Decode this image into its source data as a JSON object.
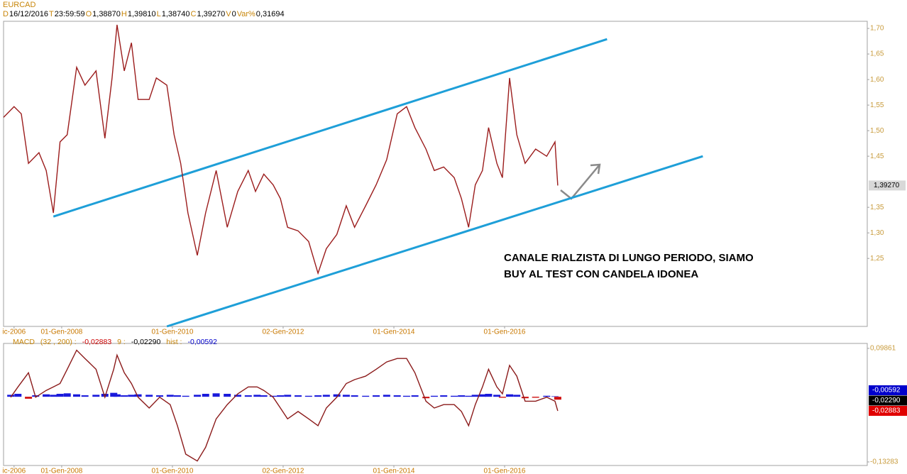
{
  "chart_data": [
    {
      "type": "line",
      "title": "EURCAD",
      "info": [
        {
          "key": "D",
          "value": "16/12/2016"
        },
        {
          "key": "T",
          "value": "23:59:59"
        },
        {
          "key": "O",
          "value": "1,38870"
        },
        {
          "key": "H",
          "value": "1,39810"
        },
        {
          "key": "L",
          "value": "1,38740"
        },
        {
          "key": "C",
          "value": "1,39270"
        },
        {
          "key": "V",
          "value": "0"
        },
        {
          "key": "Var%",
          "value": "0,31694"
        }
      ],
      "x": [
        2006.95,
        2007.14,
        2007.27,
        2007.4,
        2007.59,
        2007.72,
        2007.85,
        2007.97,
        2008.1,
        2008.27,
        2008.42,
        2008.62,
        2008.78,
        2008.91,
        2009.0,
        2009.13,
        2009.26,
        2009.38,
        2009.58,
        2009.71,
        2009.9,
        2010.03,
        2010.15,
        2010.28,
        2010.45,
        2010.6,
        2010.79,
        2010.99,
        2011.18,
        2011.37,
        2011.5,
        2011.65,
        2011.82,
        2011.95,
        2012.08,
        2012.27,
        2012.46,
        2012.63,
        2012.78,
        2012.97,
        2013.14,
        2013.29,
        2013.49,
        2013.68,
        2013.87,
        2014.06,
        2014.23,
        2014.38,
        2014.58,
        2014.73,
        2014.9,
        2015.09,
        2015.22,
        2015.35,
        2015.47,
        2015.6,
        2015.71,
        2015.86,
        2015.96,
        2016.09,
        2016.22,
        2016.37,
        2016.56,
        2016.76,
        2016.91,
        2016.96
      ],
      "series": [
        {
          "color": "#9b1c1c",
          "values": [
            1.526,
            1.547,
            1.533,
            1.436,
            1.457,
            1.422,
            1.339,
            1.478,
            1.492,
            1.624,
            1.589,
            1.617,
            1.485,
            1.603,
            1.707,
            1.617,
            1.672,
            1.561,
            1.561,
            1.603,
            1.589,
            1.492,
            1.436,
            1.339,
            1.256,
            1.339,
            1.422,
            1.311,
            1.381,
            1.422,
            1.381,
            1.415,
            1.394,
            1.367,
            1.311,
            1.304,
            1.283,
            1.221,
            1.269,
            1.297,
            1.353,
            1.311,
            1.353,
            1.394,
            1.443,
            1.533,
            1.547,
            1.506,
            1.464,
            1.422,
            1.429,
            1.408,
            1.367,
            1.311,
            1.394,
            1.422,
            1.506,
            1.436,
            1.408,
            1.603,
            1.492,
            1.436,
            1.464,
            1.45,
            1.478,
            1.3927
          ]
        }
      ],
      "xlim": [
        2006.95,
        2022.55
      ],
      "ylim": [
        1.117,
        1.714
      ],
      "yticks": [
        {
          "value": 1.25,
          "label": "1,25"
        },
        {
          "value": 1.3,
          "label": "1,30"
        },
        {
          "value": 1.35,
          "label": "1,35"
        },
        {
          "value": 1.45,
          "label": "1,45"
        },
        {
          "value": 1.5,
          "label": "1,50"
        },
        {
          "value": 1.55,
          "label": "1,55"
        },
        {
          "value": 1.6,
          "label": "1,60"
        },
        {
          "value": 1.65,
          "label": "1,65"
        },
        {
          "value": 1.7,
          "label": "1,70"
        }
      ],
      "xticks": [
        {
          "value": 2007.14,
          "label": "ic-2006"
        },
        {
          "value": 2008,
          "label": "01-Gen-2008"
        },
        {
          "value": 2010,
          "label": "01-Gen-2010"
        },
        {
          "value": 2012,
          "label": "02-Gen-2012"
        },
        {
          "value": 2014,
          "label": "01-Gen-2014"
        },
        {
          "value": 2016,
          "label": "01-Gen-2016"
        }
      ],
      "last_price": {
        "value": 1.3927,
        "label": "1,39270"
      },
      "trendlines": [
        {
          "x": [
            2007.85,
            2017.85
          ],
          "y": [
            1.332,
            1.679
          ],
          "color": "#1e9fd8"
        },
        {
          "x": [
            2009.9,
            2019.58
          ],
          "y": [
            1.117,
            1.45
          ],
          "color": "#1e9fd8"
        }
      ],
      "annotation": [
        "CANALE RIALZISTA DI LUNGO PERIODO, SIAMO",
        "BUY AL TEST CON CANDELA IDONEA"
      ]
    },
    {
      "type": "macd",
      "legend": [
        {
          "text": "MACD",
          "color": "#c8860a"
        },
        {
          "text": "(32 , 200) :",
          "color": "#c8860a"
        },
        {
          "text": "-0,02883",
          "color": "#cc0000"
        },
        {
          "text": "9 :",
          "color": "#c8860a"
        },
        {
          "text": "-0,02290",
          "color": "#000000"
        },
        {
          "text": "hist :",
          "color": "#c8860a"
        },
        {
          "text": "-0,00592",
          "color": "#0000cc"
        }
      ],
      "x": [
        2007.08,
        2007.21,
        2007.4,
        2007.53,
        2007.72,
        2007.85,
        2007.97,
        2008.1,
        2008.27,
        2008.42,
        2008.62,
        2008.78,
        2008.94,
        2009.0,
        2009.13,
        2009.26,
        2009.38,
        2009.58,
        2009.77,
        2009.96,
        2010.09,
        2010.24,
        2010.45,
        2010.6,
        2010.79,
        2010.99,
        2011.18,
        2011.37,
        2011.53,
        2011.65,
        2011.82,
        2011.95,
        2012.08,
        2012.27,
        2012.46,
        2012.63,
        2012.78,
        2012.97,
        2013.14,
        2013.29,
        2013.49,
        2013.68,
        2013.87,
        2014.06,
        2014.23,
        2014.38,
        2014.58,
        2014.73,
        2014.9,
        2015.09,
        2015.22,
        2015.35,
        2015.47,
        2015.6,
        2015.71,
        2015.86,
        2015.96,
        2016.09,
        2016.22,
        2016.37,
        2016.56,
        2016.76,
        2016.91,
        2016.96
      ],
      "series": [
        {
          "style": "bar",
          "color": "#1a1adb",
          "values": [
            0.004,
            0.006,
            -0.004,
            0.003,
            0.005,
            0.004,
            0.006,
            0.007,
            0.005,
            0.003,
            0.004,
            0.006,
            0.008,
            0.005,
            0.003,
            0.004,
            0.005,
            0.004,
            0.003,
            0.004,
            0.003,
            0.002,
            0.004,
            0.006,
            0.007,
            0.006,
            0.004,
            0.003,
            0.004,
            0.003,
            0.002,
            0.003,
            0.004,
            0.003,
            0.002,
            0.003,
            0.004,
            0.005,
            0.004,
            0.003,
            0.002,
            0.003,
            0.004,
            0.003,
            0.002,
            0.003,
            -0.003,
            0.002,
            0.003,
            0.002,
            0.003,
            0.002,
            0.004,
            0.005,
            0.006,
            0.004,
            -0.002,
            0.005,
            0.004,
            -0.003,
            -0.002,
            0.002,
            0.001,
            -0.00592
          ]
        },
        {
          "style": "line",
          "color": "#8b1a1a",
          "values": [
            -0.001,
            0.02,
            0.049,
            -0.001,
            0.013,
            0.02,
            0.027,
            0.056,
            0.095,
            0.078,
            0.056,
            -0.001,
            0.056,
            0.085,
            0.049,
            0.027,
            -0.001,
            -0.023,
            -0.001,
            -0.016,
            -0.059,
            -0.117,
            -0.131,
            -0.103,
            -0.045,
            -0.016,
            0.006,
            0.02,
            0.02,
            0.013,
            -0.001,
            -0.023,
            -0.045,
            -0.03,
            -0.045,
            -0.059,
            -0.023,
            -0.001,
            0.027,
            0.035,
            0.042,
            0.056,
            0.071,
            0.078,
            0.078,
            0.049,
            -0.009,
            -0.023,
            -0.016,
            -0.016,
            -0.03,
            -0.059,
            -0.016,
            0.02,
            0.056,
            0.02,
            0.006,
            0.064,
            0.042,
            -0.009,
            -0.009,
            -0.001,
            -0.009,
            -0.02883
          ]
        }
      ],
      "xlim": [
        2006.95,
        2022.55
      ],
      "ylim": [
        -0.1401,
        0.1087
      ],
      "yticks": [
        {
          "value": -0.13283,
          "label": "-0,13283"
        },
        {
          "value": 0.09861,
          "label": "0,09861"
        }
      ],
      "xticks": [
        {
          "value": 2007.14,
          "label": "ic-2006"
        },
        {
          "value": 2008,
          "label": "01-Gen-2008"
        },
        {
          "value": 2010,
          "label": "01-Gen-2010"
        },
        {
          "value": 2012,
          "label": "02-Gen-2012"
        },
        {
          "value": 2014,
          "label": "01-Gen-2014"
        },
        {
          "value": 2016,
          "label": "01-Gen-2016"
        }
      ],
      "last_values": [
        {
          "value": -0.00592,
          "label": "-0,00592",
          "color": "#0000cc"
        },
        {
          "value": -0.0229,
          "label": "-0,02290",
          "color": "#000000"
        },
        {
          "value": -0.02883,
          "label": "-0,02883",
          "color": "#e00000"
        }
      ]
    }
  ]
}
